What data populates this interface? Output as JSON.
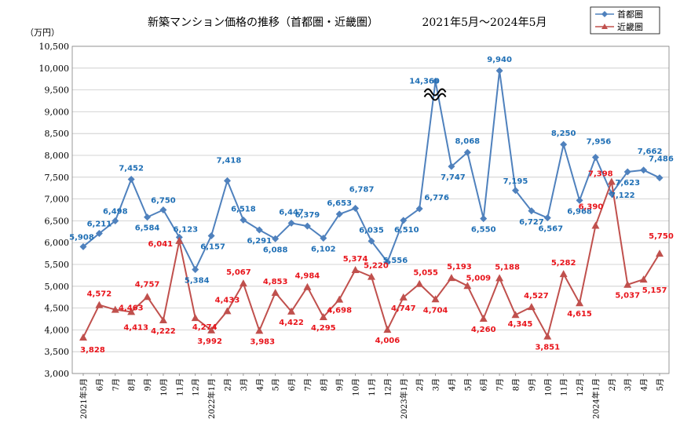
{
  "chart_data": {
    "type": "line",
    "title": "新築マンション価格の推移（首都圏・近畿圏）",
    "subtitle": "2021年5月〜2024年5月",
    "yunit": "（万円）",
    "ylim": [
      3000,
      10500
    ],
    "yticks": [
      "3,000",
      "3,500",
      "4,000",
      "4,500",
      "5,000",
      "5,500",
      "6,000",
      "6,500",
      "7,000",
      "7,500",
      "8,000",
      "8,500",
      "9,000",
      "9,500",
      "10,000",
      "10,500"
    ],
    "categories": [
      "2021年5月",
      "6月",
      "7月",
      "8月",
      "9月",
      "10月",
      "11月",
      "12月",
      "2022年1月",
      "2月",
      "3月",
      "4月",
      "5月",
      "6月",
      "7月",
      "8月",
      "9月",
      "10月",
      "11月",
      "12月",
      "2023年1月",
      "2月",
      "3月",
      "4月",
      "5月",
      "6月",
      "7月",
      "8月",
      "9月",
      "10月",
      "11月",
      "12月",
      "2024年1月",
      "2月",
      "3月",
      "4月",
      "5月"
    ],
    "axis_break": {
      "series": "首都圏",
      "index": 22,
      "plotted_value": 9700
    },
    "series": [
      {
        "name": "首都圏",
        "color": "#4F81BD",
        "label_color": "#1F6FB5",
        "marker": "diamond",
        "values": [
          5908,
          6211,
          6498,
          7452,
          6584,
          6750,
          6123,
          5384,
          6157,
          7418,
          6518,
          6291,
          6088,
          6447,
          6379,
          6102,
          6653,
          6787,
          6035,
          5556,
          6510,
          6776,
          14360,
          7747,
          8068,
          6550,
          9940,
          7195,
          6727,
          6567,
          8250,
          6968,
          7956,
          7122,
          7623,
          7662,
          7486
        ],
        "labels": [
          "5,908",
          "6,211",
          "6,498",
          "7,452",
          "6,584",
          "6,750",
          "6,123",
          "5,384",
          "6,157",
          "7,418",
          "6,518",
          "6,291",
          "6,088",
          "6,447",
          "6,379",
          "6,102",
          "6,653",
          "6,787",
          "6,035",
          "5,556",
          "6,510",
          "6,776",
          "14,360",
          "7,747",
          "8,068",
          "6,550",
          "9,940",
          "7,195",
          "6,727",
          "6,567",
          "8,250",
          "6,968",
          "7,956",
          "7,122",
          "7,623",
          "7,662",
          "7,486"
        ]
      },
      {
        "name": "近畿圏",
        "color": "#C0504D",
        "label_color": "#E8141B",
        "marker": "triangle",
        "values": [
          3828,
          4572,
          4463,
          4413,
          4757,
          4222,
          6041,
          4274,
          3992,
          4433,
          5067,
          3983,
          4853,
          4422,
          4984,
          4295,
          4698,
          5374,
          5220,
          4006,
          4747,
          5055,
          4704,
          5193,
          5009,
          4260,
          5188,
          4345,
          4527,
          3851,
          5282,
          4615,
          6390,
          7398,
          5037,
          5157,
          5750
        ],
        "labels": [
          "3,828",
          "4,572",
          "4,463",
          "4,413",
          "4,757",
          "4,222",
          "6,041",
          "4,274",
          "3,992",
          "4,433",
          "5,067",
          "3,983",
          "4,853",
          "4,422",
          "4,984",
          "4,295",
          "4,698",
          "5,374",
          "5,220",
          "4,006",
          "4,747",
          "5,055",
          "4,704",
          "5,193",
          "5,009",
          "4,260",
          "5,188",
          "4,345",
          "4,527",
          "3,851",
          "5,282",
          "4,615",
          "6,390",
          "7,398",
          "5,037",
          "5,157",
          "5,750"
        ]
      }
    ]
  }
}
